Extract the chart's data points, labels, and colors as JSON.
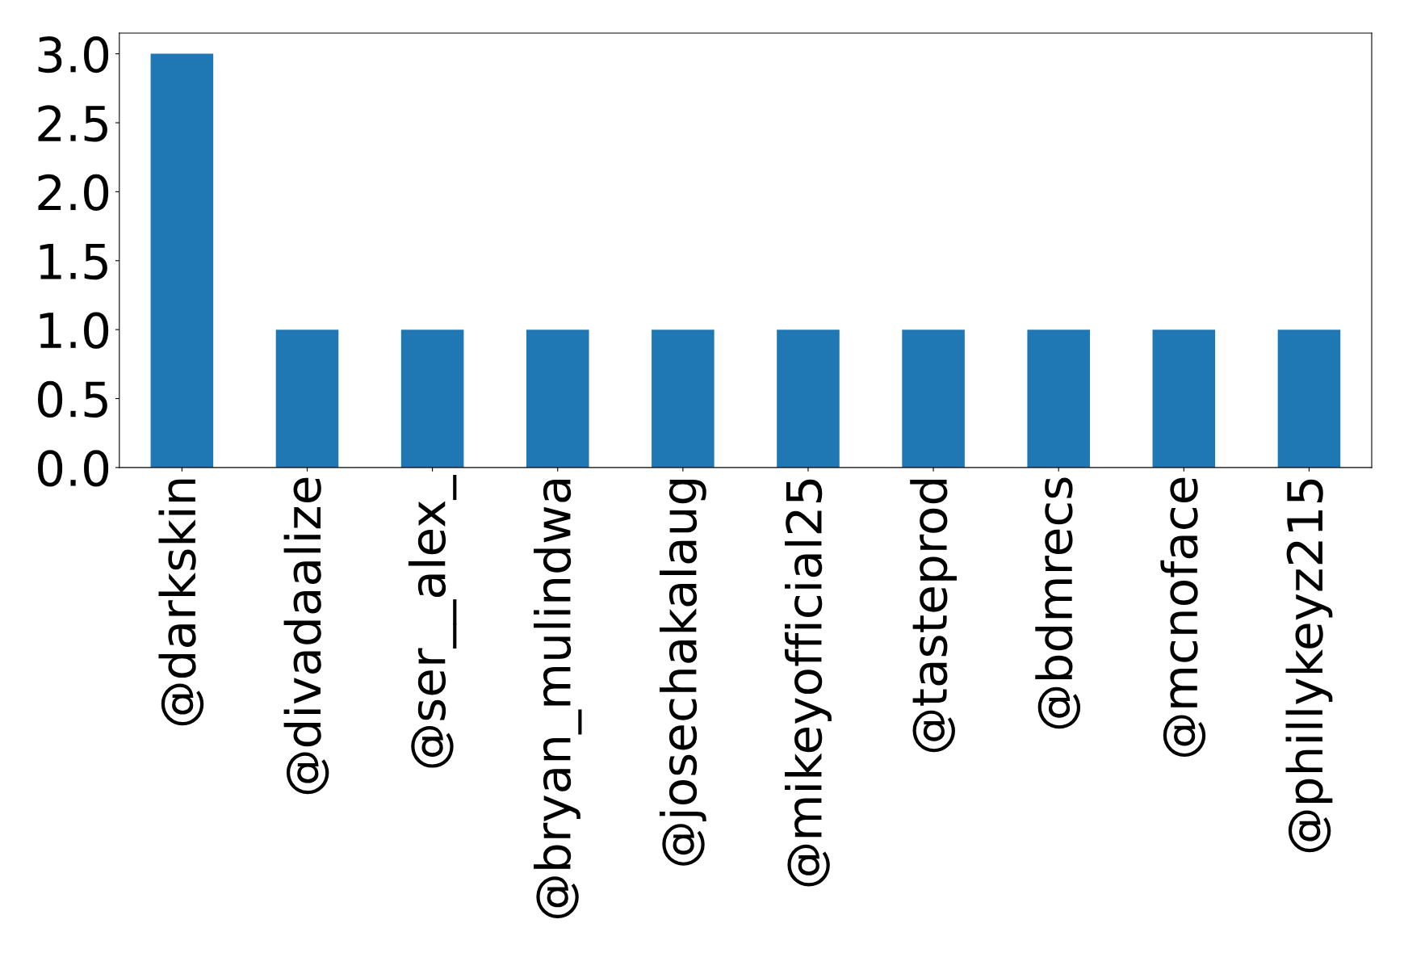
{
  "chart_data": {
    "type": "bar",
    "categories": [
      "@darkskin",
      "@divadaalize",
      "@ser__alex_",
      "@bryan_mulindwa",
      "@josechakalaug",
      "@mikeyofficial25",
      "@tasteprod",
      "@bdmrecs",
      "@mcnoface",
      "@phillykeyz215"
    ],
    "values": [
      3,
      1,
      1,
      1,
      1,
      1,
      1,
      1,
      1,
      1
    ],
    "color": "#1f77b4",
    "ylim": [
      0,
      3.15
    ],
    "yticks": [
      {
        "value": 0,
        "label": "0.0"
      },
      {
        "value": 0.5,
        "label": "0.5"
      },
      {
        "value": 1,
        "label": "1.0"
      },
      {
        "value": 1.5,
        "label": "1.5"
      },
      {
        "value": 2,
        "label": "2.0"
      },
      {
        "value": 2.5,
        "label": "2.5"
      },
      {
        "value": 3,
        "label": "3.0"
      }
    ],
    "grid": false,
    "legend": false
  }
}
